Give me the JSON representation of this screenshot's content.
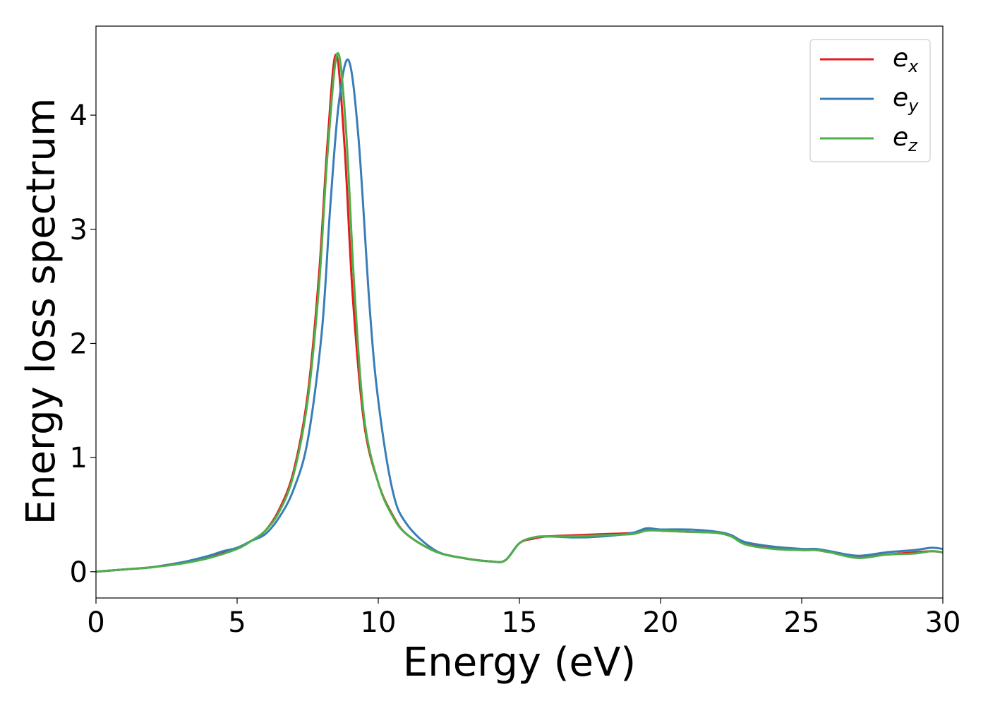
{
  "chart_data": {
    "type": "line",
    "title": "",
    "xlabel": "Energy (eV)",
    "ylabel": "Energy loss spectrum",
    "xlim": [
      0,
      30
    ],
    "ylim": [
      -0.23,
      4.78
    ],
    "xticks": [
      "0",
      "5",
      "10",
      "15",
      "20",
      "25",
      "30"
    ],
    "yticks": [
      "0",
      "1",
      "2",
      "3",
      "4"
    ],
    "grid": false,
    "legend_position": "top-right",
    "series": [
      {
        "name": "e",
        "subscript": "x",
        "color": "#e41a1c",
        "x": [
          0,
          1,
          2,
          3,
          4,
          5,
          5.5,
          6,
          6.5,
          7,
          7.5,
          7.9,
          8.2,
          8.5,
          8.8,
          9.1,
          9.5,
          10,
          10.5,
          11,
          12,
          13,
          14,
          14.5,
          15,
          15.5,
          16,
          17,
          18,
          19,
          19.5,
          20,
          21,
          22,
          22.5,
          23,
          24,
          25,
          25.5,
          26,
          27,
          28,
          29,
          29.6,
          30
        ],
        "y": [
          0,
          0.02,
          0.04,
          0.08,
          0.13,
          0.21,
          0.27,
          0.36,
          0.55,
          0.88,
          1.55,
          2.6,
          3.75,
          4.53,
          3.75,
          2.4,
          1.3,
          0.78,
          0.5,
          0.33,
          0.18,
          0.12,
          0.09,
          0.1,
          0.25,
          0.29,
          0.31,
          0.32,
          0.33,
          0.34,
          0.37,
          0.36,
          0.35,
          0.34,
          0.31,
          0.25,
          0.21,
          0.19,
          0.19,
          0.17,
          0.13,
          0.15,
          0.17,
          0.18,
          0.17
        ]
      },
      {
        "name": "e",
        "subscript": "y",
        "color": "#377eb8",
        "x": [
          0,
          1,
          2,
          3,
          4,
          4.5,
          5,
          5.5,
          6,
          6.5,
          7,
          7.5,
          8,
          8.3,
          8.6,
          8.95,
          9.3,
          9.7,
          10,
          10.5,
          11,
          12,
          13,
          14,
          14.5,
          15,
          15.5,
          16,
          17,
          18,
          19,
          19.5,
          20,
          21,
          22,
          22.5,
          23,
          24,
          25,
          25.5,
          26,
          27,
          28,
          29,
          29.6,
          30
        ],
        "y": [
          0,
          0.02,
          0.04,
          0.08,
          0.14,
          0.18,
          0.21,
          0.27,
          0.33,
          0.48,
          0.72,
          1.15,
          2.1,
          3.2,
          4.1,
          4.48,
          3.8,
          2.3,
          1.5,
          0.72,
          0.42,
          0.19,
          0.12,
          0.09,
          0.1,
          0.25,
          0.3,
          0.31,
          0.3,
          0.31,
          0.34,
          0.38,
          0.37,
          0.37,
          0.35,
          0.32,
          0.26,
          0.22,
          0.2,
          0.2,
          0.18,
          0.14,
          0.17,
          0.19,
          0.21,
          0.2
        ]
      },
      {
        "name": "e",
        "subscript": "z",
        "color": "#4daf4a",
        "x": [
          0,
          1,
          2,
          3,
          4,
          5,
          5.5,
          6,
          6.5,
          7,
          7.5,
          7.9,
          8.2,
          8.55,
          8.85,
          9.15,
          9.5,
          10,
          10.5,
          11,
          12,
          13,
          14,
          14.5,
          15,
          15.5,
          16,
          17,
          18,
          19,
          19.5,
          20,
          21,
          22,
          22.5,
          23,
          24,
          25,
          25.5,
          26,
          27,
          28,
          29,
          29.6,
          30
        ],
        "y": [
          0,
          0.02,
          0.04,
          0.07,
          0.12,
          0.2,
          0.27,
          0.36,
          0.53,
          0.85,
          1.5,
          2.5,
          3.65,
          4.54,
          3.9,
          2.5,
          1.35,
          0.78,
          0.49,
          0.33,
          0.18,
          0.12,
          0.09,
          0.1,
          0.25,
          0.3,
          0.31,
          0.31,
          0.32,
          0.33,
          0.36,
          0.36,
          0.35,
          0.34,
          0.31,
          0.24,
          0.2,
          0.19,
          0.19,
          0.17,
          0.12,
          0.15,
          0.16,
          0.18,
          0.17
        ]
      }
    ]
  }
}
